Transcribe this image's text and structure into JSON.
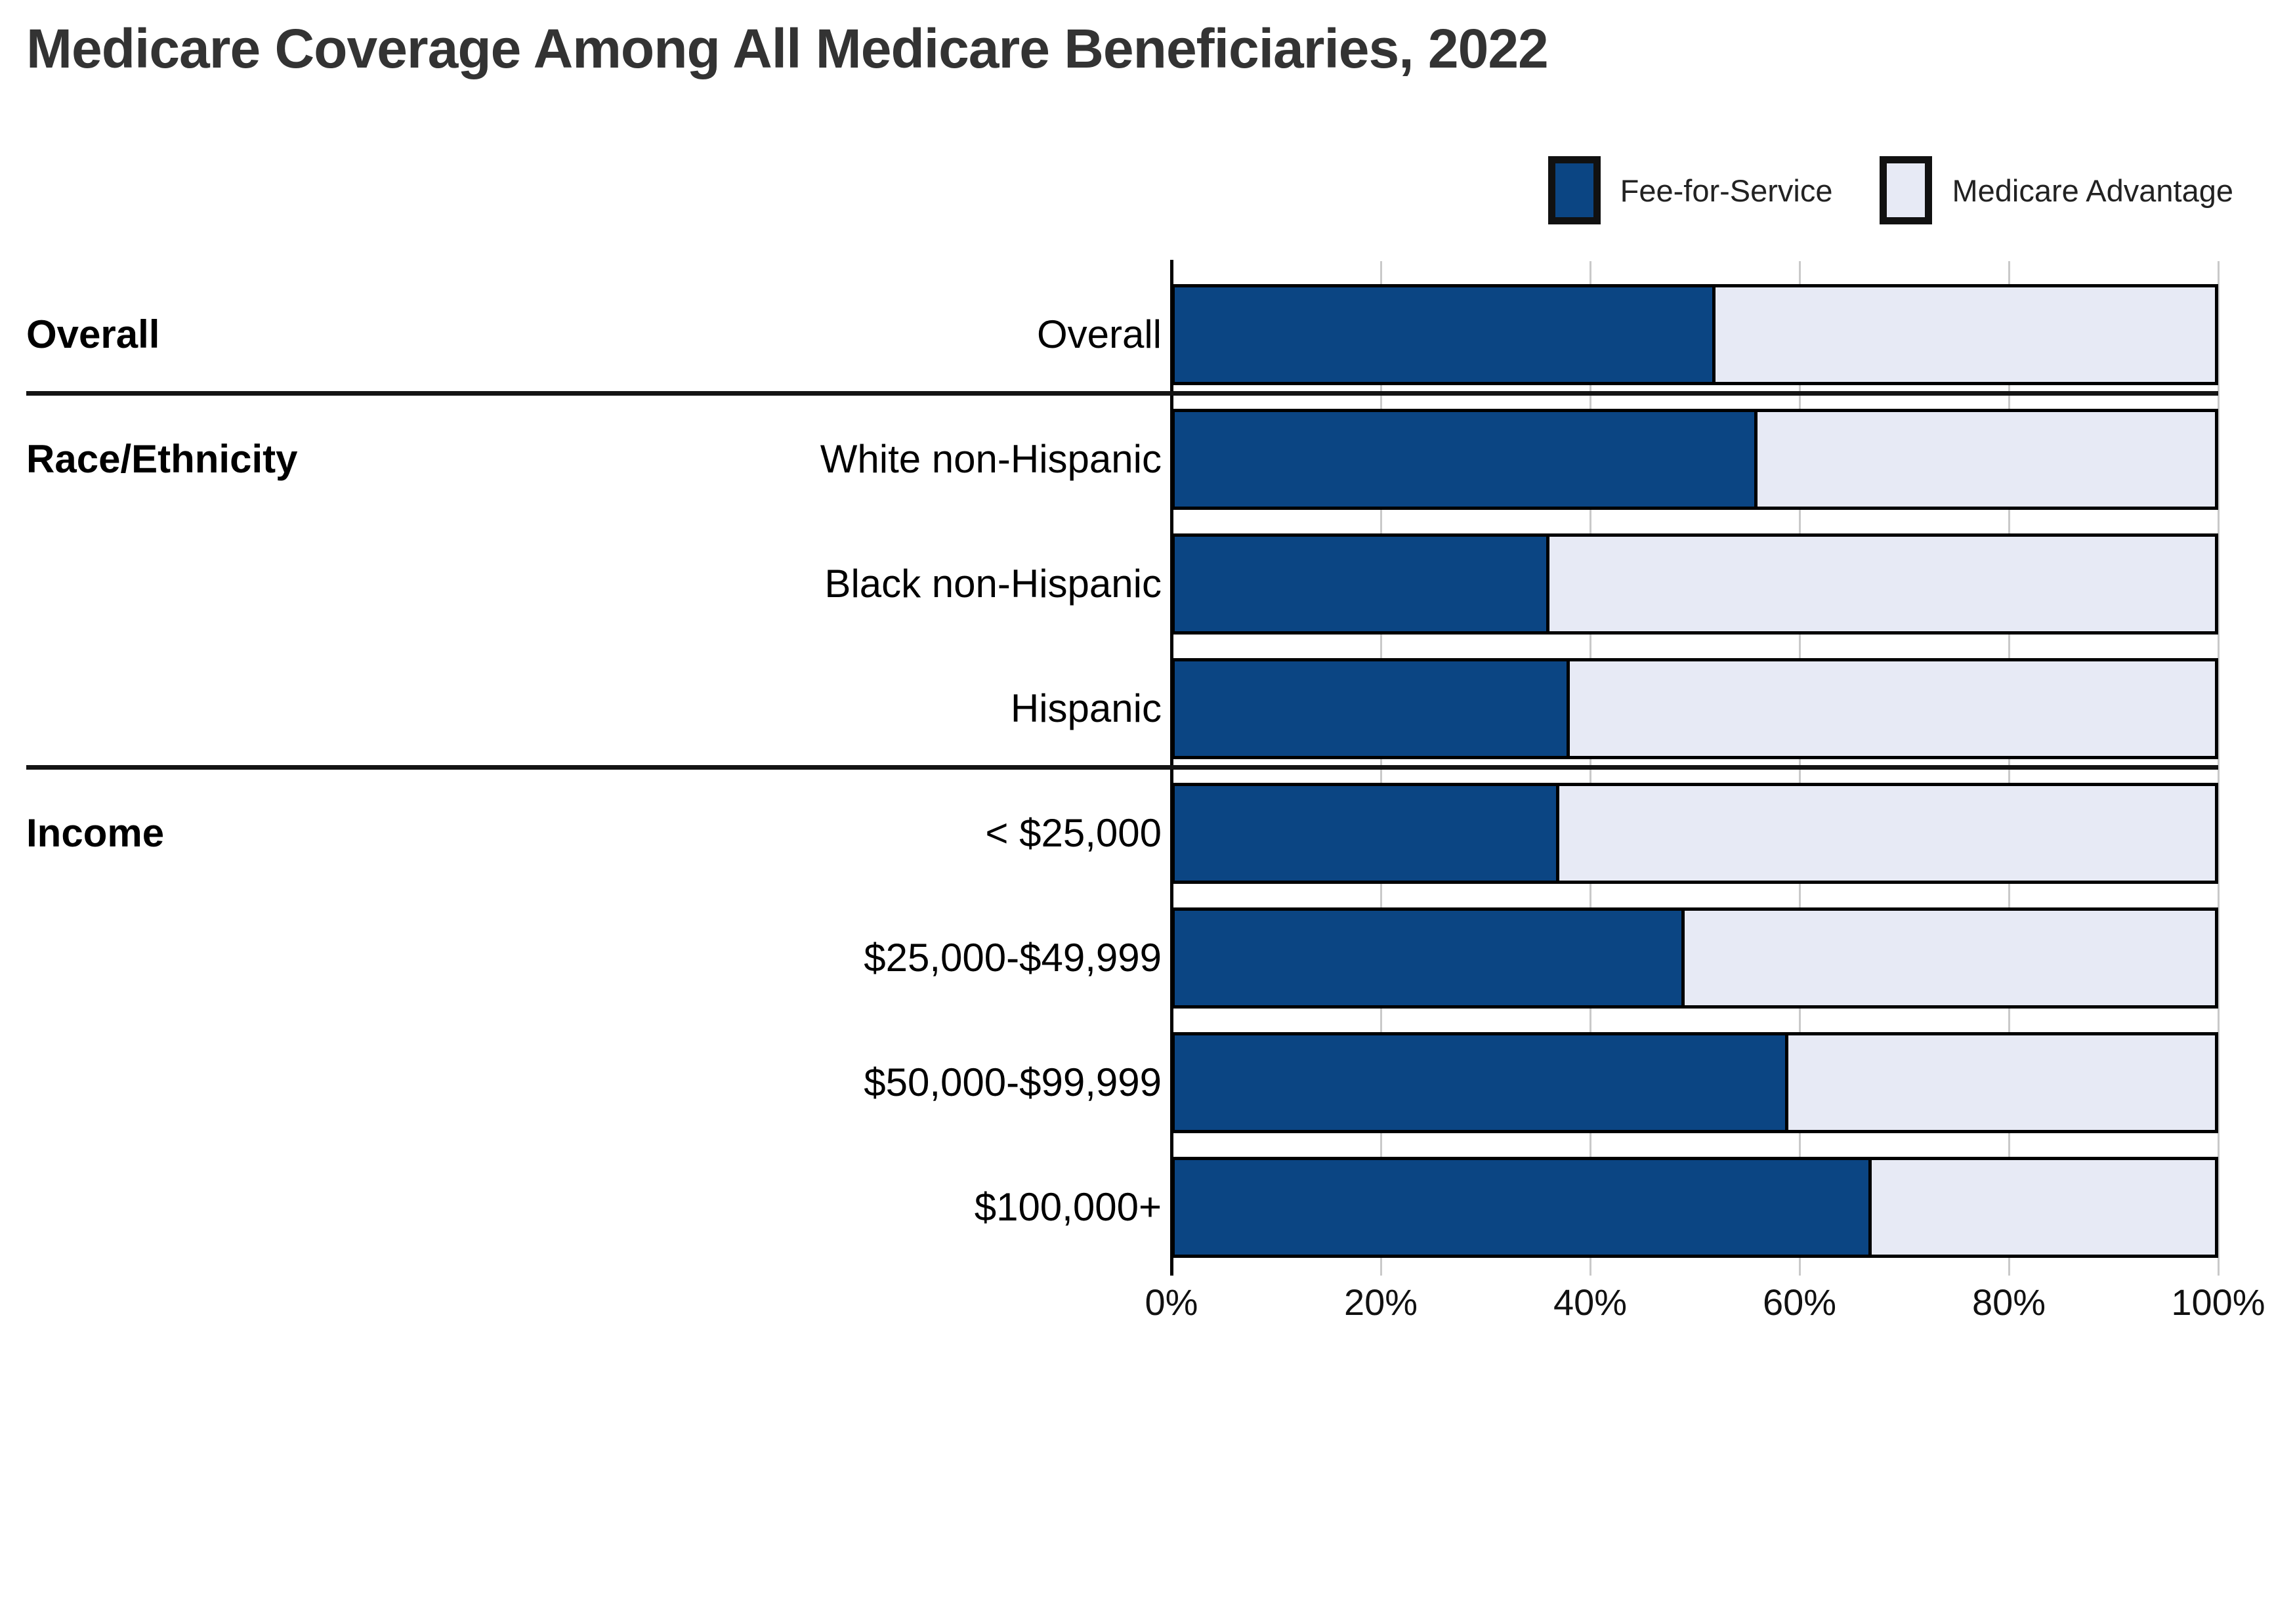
{
  "chart_data": {
    "type": "bar",
    "stacked": true,
    "orientation": "horizontal",
    "title": "Medicare Coverage Among All Medicare Beneficiaries, 2022",
    "legend_position": "top-right",
    "grid": true,
    "x_axis": {
      "min": 0,
      "max": 100,
      "unit": "%",
      "ticks": [
        "0%",
        "20%",
        "40%",
        "60%",
        "80%",
        "100%"
      ]
    },
    "series": [
      {
        "name": "Fee-for-Service",
        "color": "#0b4583"
      },
      {
        "name": "Medicare Advantage",
        "color": "#e7eaf5"
      }
    ],
    "groups": [
      {
        "label": "Overall",
        "rows": [
          {
            "label": "Overall",
            "values": {
              "fee_for_service": 52,
              "medicare_advantage": 48
            }
          }
        ]
      },
      {
        "label": "Race/Ethnicity",
        "rows": [
          {
            "label": "White non-Hispanic",
            "values": {
              "fee_for_service": 56,
              "medicare_advantage": 44
            }
          },
          {
            "label": "Black non-Hispanic",
            "values": {
              "fee_for_service": 36,
              "medicare_advantage": 64
            }
          },
          {
            "label": "Hispanic",
            "values": {
              "fee_for_service": 38,
              "medicare_advantage": 62
            }
          }
        ]
      },
      {
        "label": "Income",
        "rows": [
          {
            "label": "< $25,000",
            "values": {
              "fee_for_service": 37,
              "medicare_advantage": 63
            }
          },
          {
            "label": "$25,000-$49,999",
            "values": {
              "fee_for_service": 49,
              "medicare_advantage": 51
            }
          },
          {
            "label": "$50,000-$99,999",
            "values": {
              "fee_for_service": 59,
              "medicare_advantage": 41
            }
          },
          {
            "label": "$100,000+",
            "values": {
              "fee_for_service": 67,
              "medicare_advantage": 33
            }
          }
        ]
      }
    ],
    "colors": {
      "bar_border": "#000000",
      "gridline": "#c9c9c9",
      "axis_line": "#000000",
      "title_text": "#333333",
      "label_text": "#000000",
      "group_divider": "#141414"
    }
  }
}
